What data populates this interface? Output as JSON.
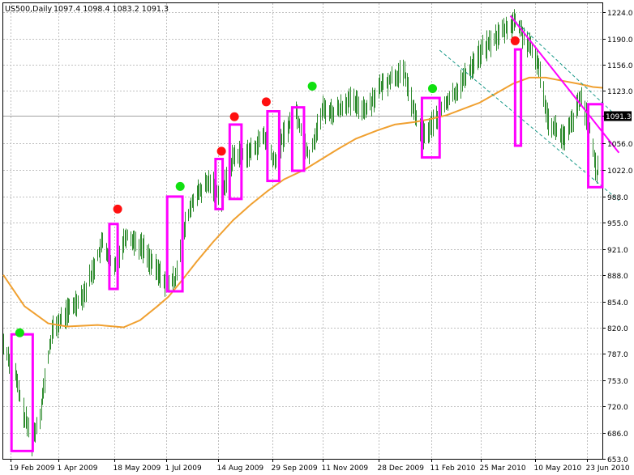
{
  "header": {
    "symbol": "US500,Daily",
    "ohlc": "1097.4 1098.4 1083.2 1091.3"
  },
  "colors": {
    "background": "#ffffff",
    "grid": "#c0c0c0",
    "candles": "#2e8b2e",
    "ma": "#f0a030",
    "boxes": "#ff00ff",
    "trendline": "#ff00ff",
    "channel": "#1a9a8a",
    "red_dot": "#ff1010",
    "green_dot": "#10e010",
    "current_price_tag": "#000000"
  },
  "chart_data": {
    "type": "line",
    "title": "US500,Daily",
    "current_price_label": "1091.3",
    "ylim": [
      653,
      1235
    ],
    "x_range": [
      "2009-02-13",
      "2010-07-06"
    ],
    "grid": true,
    "y_ticks": [
      "1224.0",
      "1190.0",
      "1156.0",
      "1123.0",
      "1091.3",
      "1056.0",
      "1022.0",
      "988.0",
      "955.0",
      "921.0",
      "888.0",
      "854.0",
      "820.0",
      "787.0",
      "753.0",
      "720.0",
      "686.0",
      "653.0"
    ],
    "y_tick_values": [
      1224.0,
      1190.0,
      1156.0,
      1123.0,
      1091.3,
      1056.0,
      1022.0,
      988.0,
      955.0,
      921.0,
      888.0,
      854.0,
      820.0,
      787.0,
      753.0,
      720.0,
      686.0,
      653.0
    ],
    "x_ticks": [
      "19 Feb 2009",
      "1 Apr 2009",
      "18 May 2009",
      "1 Jul 2009",
      "14 Aug 2009",
      "29 Sep 2009",
      "11 Nov 2009",
      "28 Dec 2009",
      "11 Feb 2010",
      "25 Mar 2010",
      "10 May 2010",
      "23 Jun 2010"
    ],
    "x_tick_dates": [
      "2009-02-19",
      "2009-04-01",
      "2009-05-18",
      "2009-07-01",
      "2009-08-14",
      "2009-09-29",
      "2009-11-11",
      "2009-12-28",
      "2010-02-11",
      "2010-03-25",
      "2010-05-10",
      "2010-06-23"
    ],
    "series": [
      {
        "kind": "price",
        "x": [
          "2009-02-13",
          "2009-02-23",
          "2009-03-03",
          "2009-03-09",
          "2009-03-16",
          "2009-03-26",
          "2009-04-08",
          "2009-04-23",
          "2009-05-08",
          "2009-05-18",
          "2009-05-28",
          "2009-06-12",
          "2009-06-22",
          "2009-07-01",
          "2009-07-08",
          "2009-07-15",
          "2009-07-24",
          "2009-08-07",
          "2009-08-17",
          "2009-08-27",
          "2009-09-11",
          "2009-09-22",
          "2009-10-01",
          "2009-10-08",
          "2009-10-19",
          "2009-10-30",
          "2009-11-11",
          "2009-11-20",
          "2009-12-02",
          "2009-12-18",
          "2009-12-28",
          "2010-01-08",
          "2010-01-19",
          "2010-01-28",
          "2010-02-05",
          "2010-02-22",
          "2010-03-05",
          "2010-03-19",
          "2010-03-26",
          "2010-04-09",
          "2010-04-23",
          "2010-04-26",
          "2010-05-06",
          "2010-05-12",
          "2010-05-21",
          "2010-06-04",
          "2010-06-18",
          "2010-06-25",
          "2010-07-01",
          "2010-07-06"
        ],
        "y": [
          800,
          760,
          705,
          676,
          710,
          815,
          840,
          866,
          929,
          895,
          940,
          921,
          895,
          878,
          880,
          940,
          985,
          1007,
          988,
          1040,
          1045,
          1065,
          1030,
          1065,
          1095,
          1040,
          1100,
          1095,
          1110,
          1100,
          1125,
          1140,
          1145,
          1090,
          1065,
          1105,
          1125,
          1160,
          1175,
          1195,
          1212,
          1205,
          1175,
          1160,
          1085,
          1060,
          1115,
          1075,
          1015,
          1091
        ]
      },
      {
        "kind": "moving_average",
        "x": [
          "2009-02-13",
          "2009-03-03",
          "2009-03-23",
          "2009-04-08",
          "2009-05-04",
          "2009-05-26",
          "2009-06-09",
          "2009-06-23",
          "2009-07-03",
          "2009-07-14",
          "2009-07-27",
          "2009-08-10",
          "2009-08-27",
          "2009-09-11",
          "2009-09-25",
          "2009-10-09",
          "2009-10-26",
          "2009-11-09",
          "2009-11-23",
          "2009-12-09",
          "2009-12-28",
          "2010-01-11",
          "2010-01-27",
          "2010-02-10",
          "2010-02-24",
          "2010-03-10",
          "2010-03-24",
          "2010-04-07",
          "2010-04-21",
          "2010-05-05",
          "2010-05-19",
          "2010-06-02",
          "2010-06-16",
          "2010-06-28",
          "2010-07-06"
        ],
        "y": [
          888,
          848,
          826,
          822,
          824,
          821,
          830,
          847,
          860,
          880,
          905,
          930,
          958,
          978,
          995,
          1010,
          1022,
          1035,
          1048,
          1062,
          1073,
          1080,
          1083,
          1087,
          1092,
          1100,
          1108,
          1120,
          1132,
          1140,
          1140,
          1136,
          1132,
          1128,
          1127
        ]
      }
    ],
    "annotations": {
      "red_dots": [
        {
          "x": "2009-05-21",
          "y": 972
        },
        {
          "x": "2009-08-17",
          "y": 1046
        },
        {
          "x": "2009-08-28",
          "y": 1090
        },
        {
          "x": "2009-09-24",
          "y": 1109
        },
        {
          "x": "2010-04-23",
          "y": 1187
        }
      ],
      "green_dots": [
        {
          "x": "2009-02-27",
          "y": 814
        },
        {
          "x": "2009-07-13",
          "y": 1001
        },
        {
          "x": "2009-11-02",
          "y": 1129
        },
        {
          "x": "2010-02-12",
          "y": 1126
        }
      ],
      "boxes": [
        {
          "x0": "2009-02-20",
          "x1": "2009-03-10",
          "y_low": 663,
          "y_high": 812
        },
        {
          "x0": "2009-05-14",
          "x1": "2009-05-21",
          "y_low": 870,
          "y_high": 953
        },
        {
          "x0": "2009-07-02",
          "x1": "2009-07-15",
          "y_low": 867,
          "y_high": 988
        },
        {
          "x0": "2009-08-12",
          "x1": "2009-08-18",
          "y_low": 972,
          "y_high": 1036
        },
        {
          "x0": "2009-08-24",
          "x1": "2009-09-03",
          "y_low": 985,
          "y_high": 1080
        },
        {
          "x0": "2009-09-25",
          "x1": "2009-10-05",
          "y_low": 1008,
          "y_high": 1097
        },
        {
          "x0": "2009-10-16",
          "x1": "2009-10-26",
          "y_low": 1021,
          "y_high": 1102
        },
        {
          "x0": "2010-02-03",
          "x1": "2010-02-18",
          "y_low": 1038,
          "y_high": 1114
        },
        {
          "x0": "2010-04-23",
          "x1": "2010-04-28",
          "y_low": 1053,
          "y_high": 1176
        },
        {
          "x0": "2010-06-24",
          "x1": "2010-07-06",
          "y_low": 1000,
          "y_high": 1106
        }
      ],
      "trendline": [
        {
          "x": "2010-04-19",
          "y": 1219
        },
        {
          "x": "2010-07-20",
          "y": 1044
        }
      ],
      "channel_lines": [
        [
          {
            "x": "2010-02-18",
            "y": 1175
          },
          {
            "x": "2010-07-20",
            "y": 983
          }
        ],
        [
          {
            "x": "2010-04-19",
            "y": 1218
          },
          {
            "x": "2010-07-20",
            "y": 1088
          }
        ]
      ]
    }
  }
}
